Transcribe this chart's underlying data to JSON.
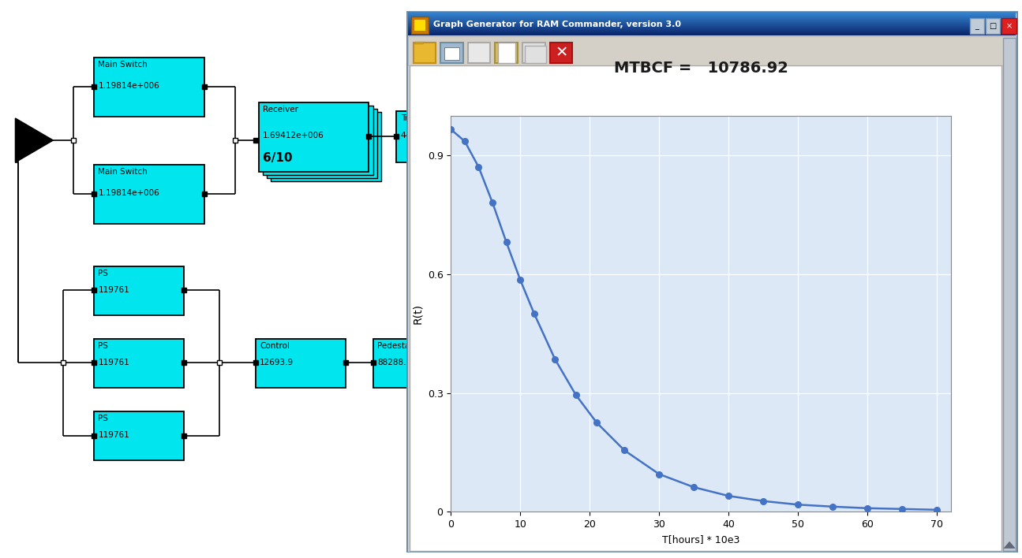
{
  "title": "MTBCF =   10786.92",
  "window_title": "Graph Generator for RAM Commander, version 3.0",
  "diagram_bg": "#ffffff",
  "window_bg": "#d4d0c8",
  "titlebar_color": "#0a246a",
  "titlebar_gradient": "#a6b8d4",
  "toolbar_bg": "#d4d0c8",
  "plot_bg": "#dce8f5",
  "cyan": "#00e5ee",
  "curve_color": "#4472c4",
  "marker_color": "#4472c4",
  "curve_x": [
    0,
    2,
    4,
    6,
    8,
    10,
    12,
    15,
    18,
    21,
    25,
    30,
    35,
    40,
    45,
    50,
    55,
    60,
    65,
    70
  ],
  "curve_y": [
    0.965,
    0.935,
    0.87,
    0.78,
    0.68,
    0.585,
    0.5,
    0.385,
    0.295,
    0.225,
    0.155,
    0.095,
    0.062,
    0.04,
    0.027,
    0.018,
    0.013,
    0.009,
    0.007,
    0.005
  ],
  "ylabel": "R(t)",
  "xlabel": "T[hours] * 10e3",
  "yticks": [
    0,
    0.3,
    0.6,
    0.9
  ],
  "xticks": [
    0,
    10,
    20,
    30,
    40,
    50,
    60,
    70
  ],
  "xlim": [
    0,
    72
  ],
  "ylim": [
    0,
    1.0
  ]
}
